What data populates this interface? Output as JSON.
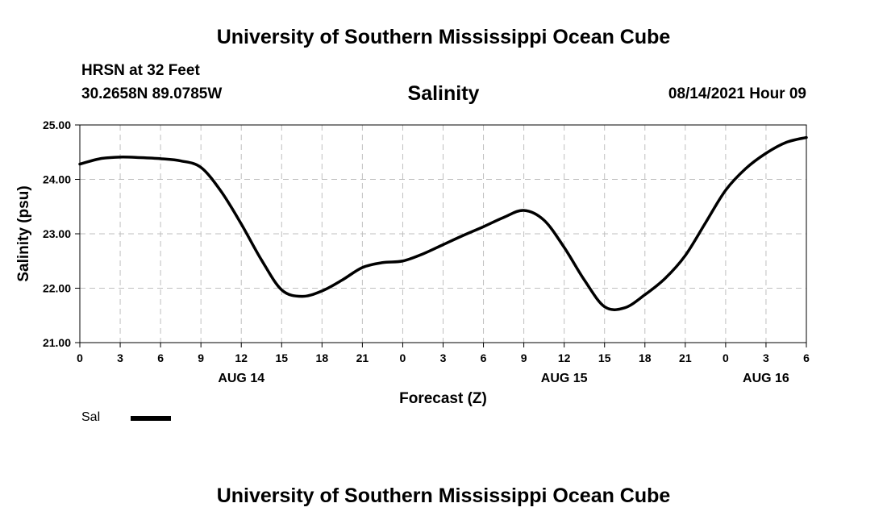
{
  "header": {
    "title_top": "University of Southern Mississippi Ocean Cube",
    "station": "HRSN at 32 Feet",
    "location": "30.2658N  89.0785W",
    "variable": "Salinity",
    "datetime": "08/14/2021 Hour 09"
  },
  "footer": {
    "title_bottom": "University of Southern Mississippi Ocean Cube"
  },
  "legend": {
    "series_label": "Sal"
  },
  "colors": {
    "line": "#000000",
    "grid": "#bfbfbf",
    "axis": "#000000"
  },
  "chart_data": {
    "type": "line",
    "title": "Salinity",
    "xlabel": "Forecast (Z)",
    "ylabel": "Salinity (psu)",
    "x_range_hours": [
      0,
      54
    ],
    "ylim": [
      21.0,
      25.0
    ],
    "y_ticks": [
      21.0,
      22.0,
      23.0,
      24.0,
      25.0
    ],
    "y_tick_labels": [
      "21.00",
      "22.00",
      "23.00",
      "24.00",
      "25.00"
    ],
    "x_ticks_hours": [
      0,
      3,
      6,
      9,
      12,
      15,
      18,
      21,
      24,
      27,
      30,
      33,
      36,
      39,
      42,
      45,
      48,
      51,
      54
    ],
    "x_tick_labels": [
      "0",
      "3",
      "6",
      "9",
      "12",
      "15",
      "18",
      "21",
      "0",
      "3",
      "6",
      "9",
      "12",
      "15",
      "18",
      "21",
      "0",
      "3",
      "6"
    ],
    "date_labels": [
      {
        "label": "AUG 14",
        "hour": 12
      },
      {
        "label": "AUG 15",
        "hour": 36
      },
      {
        "label": "AUG 16",
        "hour": 51
      }
    ],
    "grid": true,
    "series": [
      {
        "name": "Sal",
        "x": [
          0,
          1.5,
          3,
          4.5,
          6,
          7.5,
          9,
          10.5,
          12,
          13.5,
          15,
          16.5,
          18,
          19.5,
          21,
          22.5,
          24,
          25.5,
          27,
          28.5,
          30,
          31.5,
          33,
          34.5,
          36,
          37.5,
          39,
          40.5,
          42,
          43.5,
          45,
          46.5,
          48,
          49.5,
          51,
          52.5,
          54
        ],
        "values": [
          24.28,
          24.38,
          24.41,
          24.4,
          24.38,
          24.34,
          24.22,
          23.78,
          23.18,
          22.52,
          21.97,
          21.85,
          21.95,
          22.15,
          22.38,
          22.47,
          22.5,
          22.63,
          22.8,
          22.97,
          23.13,
          23.3,
          23.43,
          23.25,
          22.75,
          22.15,
          21.66,
          21.64,
          21.88,
          22.18,
          22.6,
          23.2,
          23.8,
          24.2,
          24.48,
          24.68,
          24.77
        ]
      }
    ]
  }
}
